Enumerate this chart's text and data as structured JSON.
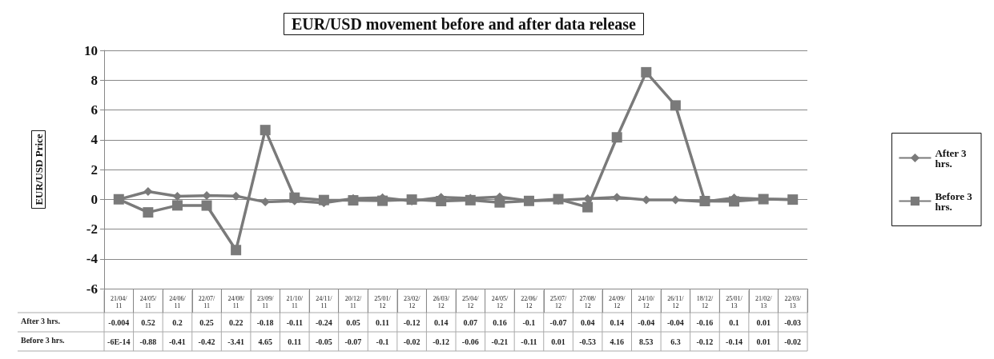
{
  "chart_data": {
    "type": "line",
    "title": "EUR/USD movement before and after data release",
    "ylabel": "EUR/USD Price",
    "categories": [
      "21/04/11",
      "24/05/11",
      "24/06/11",
      "22/07/11",
      "24/08/11",
      "23/09/11",
      "21/10/11",
      "24/11/11",
      "20/12/11",
      "25/01/12",
      "23/02/12",
      "26/03/12",
      "25/04/12",
      "24/05/12",
      "22/06/12",
      "25/07/12",
      "27/08/12",
      "24/09/12",
      "24/10/12",
      "26/11/12",
      "18/12/12",
      "25/01/13",
      "21/02/13",
      "22/03/13"
    ],
    "series": [
      {
        "name": "After 3 hrs.",
        "color": "#7a7a7a",
        "marker": "diamond",
        "values": [
          -0.004,
          0.52,
          0.2,
          0.25,
          0.22,
          -0.18,
          -0.11,
          -0.24,
          0.05,
          0.11,
          -0.12,
          0.14,
          0.07,
          0.16,
          -0.1,
          -0.07,
          0.04,
          0.14,
          -0.04,
          -0.04,
          -0.16,
          0.1,
          0.01,
          -0.03
        ],
        "value_labels": [
          "-0.004",
          "0.52",
          "0.2",
          "0.25",
          "0.22",
          "-0.18",
          "-0.11",
          "-0.24",
          "0.05",
          "0.11",
          "-0.12",
          "0.14",
          "0.07",
          "0.16",
          "-0.1",
          "-0.07",
          "0.04",
          "0.14",
          "-0.04",
          "-0.04",
          "-0.16",
          "0.1",
          "0.01",
          "-0.03"
        ]
      },
      {
        "name": "Before 3 hrs.",
        "color": "#7a7a7a",
        "marker": "square",
        "values": [
          -6e-14,
          -0.88,
          -0.41,
          -0.42,
          -3.41,
          4.65,
          0.11,
          -0.05,
          -0.07,
          -0.1,
          -0.02,
          -0.12,
          -0.06,
          -0.21,
          -0.11,
          0.01,
          -0.53,
          4.16,
          8.53,
          6.3,
          -0.12,
          -0.14,
          0.01,
          -0.02
        ],
        "value_labels": [
          "-6E-14",
          "-0.88",
          "-0.41",
          "-0.42",
          "-3.41",
          "4.65",
          "0.11",
          "-0.05",
          "-0.07",
          "-0.1",
          "-0.02",
          "-0.12",
          "-0.06",
          "-0.21",
          "-0.11",
          "0.01",
          "-0.53",
          "4.16",
          "8.53",
          "6.3",
          "-0.12",
          "-0.14",
          "0.01",
          "-0.02"
        ]
      }
    ],
    "ylim": [
      -6,
      10
    ],
    "yticks": [
      -6,
      -4,
      -2,
      0,
      2,
      4,
      6,
      8,
      10
    ],
    "grid": "y",
    "legend": "right",
    "line_style": "solid"
  }
}
